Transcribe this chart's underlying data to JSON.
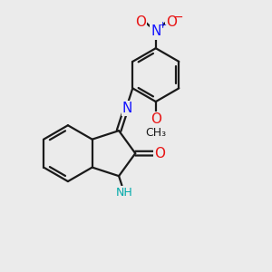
{
  "bg_color": "#ebebeb",
  "bond_color": "#1a1a1a",
  "bond_width": 1.6,
  "n_color": "#1414ff",
  "o_color": "#e81414",
  "nh_color": "#00aaaa",
  "figsize": [
    3.0,
    3.0
  ],
  "dpi": 100,
  "xlim": [
    0,
    10
  ],
  "ylim": [
    0,
    10
  ]
}
